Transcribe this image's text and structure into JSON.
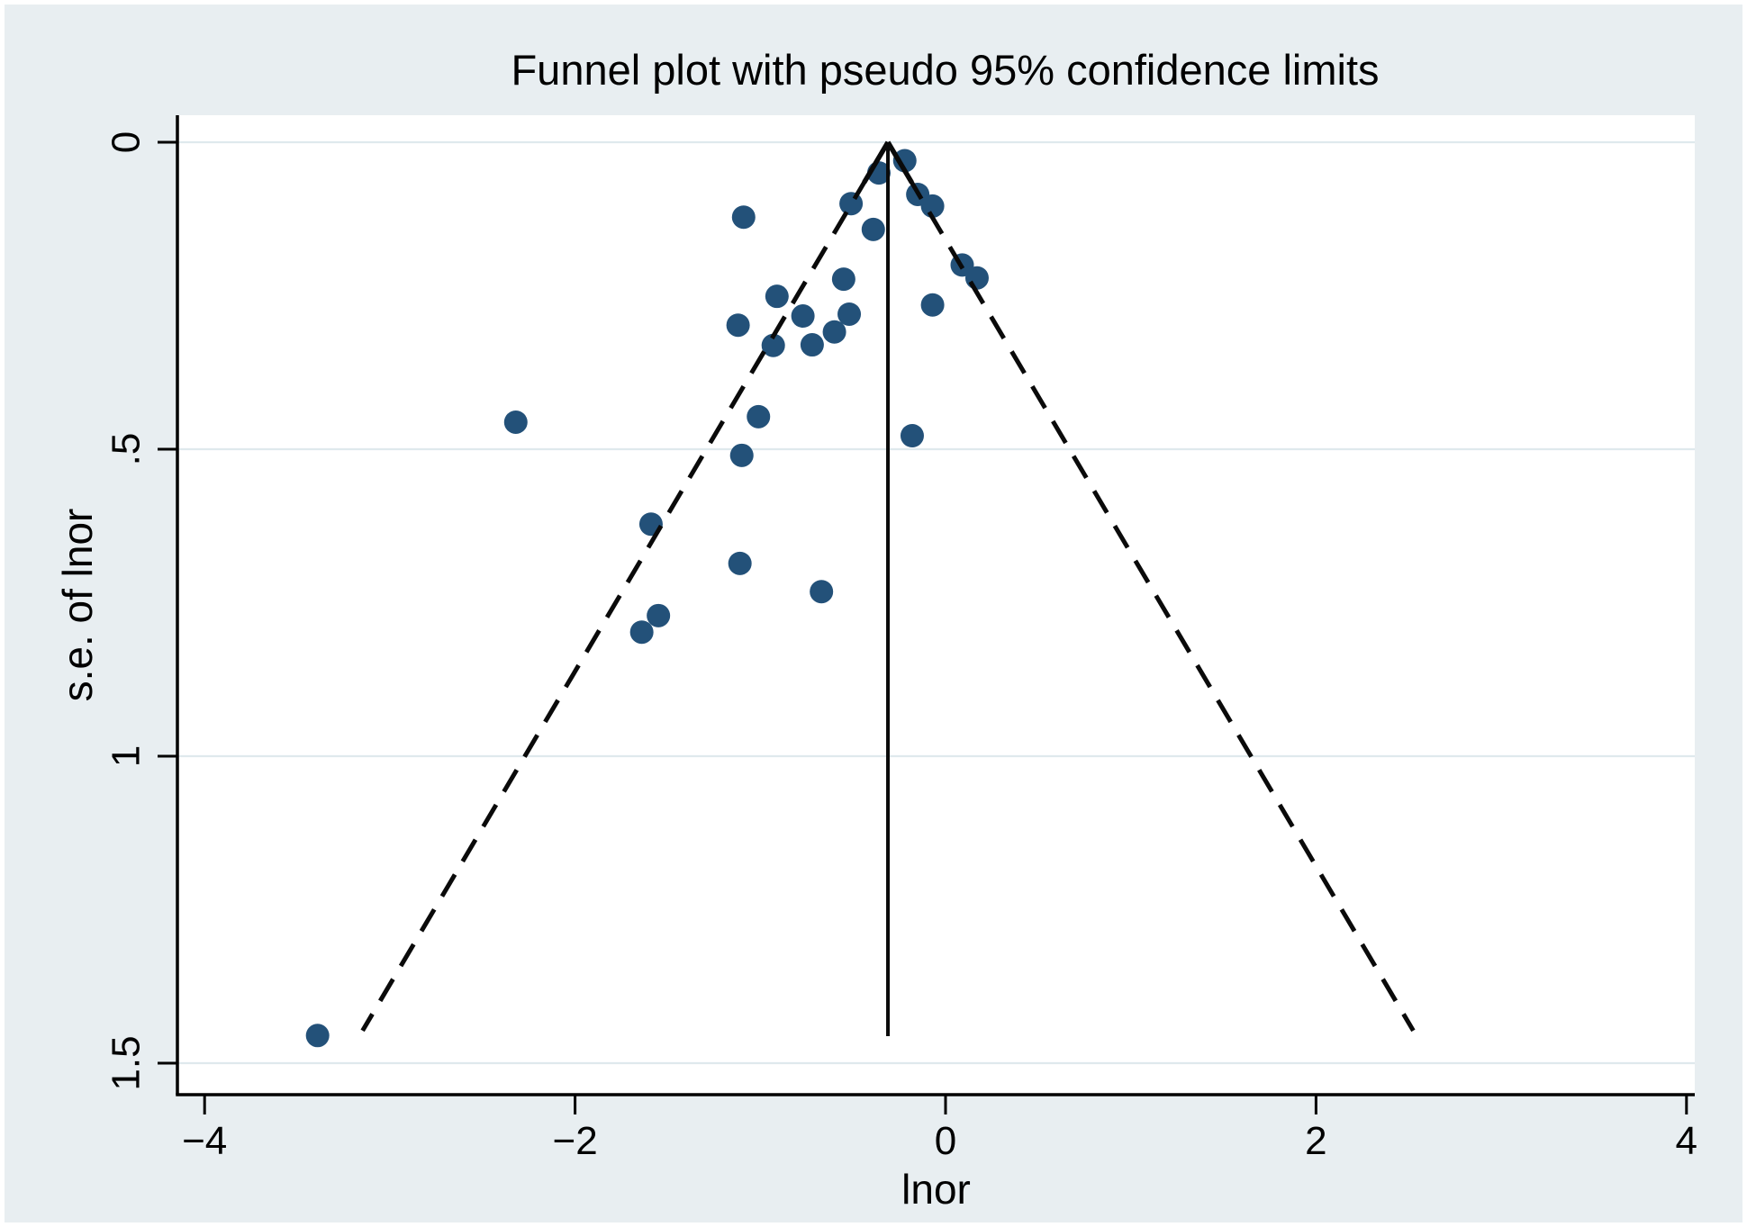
{
  "chart_data": {
    "type": "scatter",
    "subtype": "funnel-plot",
    "title": "Funnel plot with pseudo 95% confidence limits",
    "xlabel": "lnor",
    "ylabel": "s.e. of lnor",
    "x_ticks": {
      "values": [
        -4,
        -2,
        0,
        2,
        4
      ],
      "labels": [
        "−4",
        "−2",
        "0",
        "2",
        "4"
      ]
    },
    "y_ticks": {
      "values": [
        0,
        0.5,
        1,
        1.5
      ],
      "labels": [
        "0",
        ".5",
        "1",
        "1.5"
      ]
    },
    "xlim": [
      -4.15,
      4.05
    ],
    "ylim": [
      -0.045,
      1.55
    ],
    "y_axis_direction": "inverted-se-increases-downward",
    "grid": "horizontal-at-y-ticks",
    "legend": "none",
    "funnel": {
      "center": -0.311,
      "ci_multiplier": 1.96,
      "se_top": 0,
      "se_bottom": 1.447
    },
    "pooled_estimate_line": {
      "x": -0.311,
      "se_from": 0,
      "se_to": 1.456
    },
    "points": [
      {
        "x": -0.36,
        "y": 0.05
      },
      {
        "x": -0.22,
        "y": 0.03
      },
      {
        "x": -0.51,
        "y": 0.1
      },
      {
        "x": -0.15,
        "y": 0.085
      },
      {
        "x": -0.07,
        "y": 0.104
      },
      {
        "x": -0.39,
        "y": 0.142
      },
      {
        "x": -0.55,
        "y": 0.223
      },
      {
        "x": 0.09,
        "y": 0.2
      },
      {
        "x": 0.17,
        "y": 0.221
      },
      {
        "x": -0.91,
        "y": 0.251
      },
      {
        "x": -0.77,
        "y": 0.283
      },
      {
        "x": -0.52,
        "y": 0.28
      },
      {
        "x": -0.6,
        "y": 0.309
      },
      {
        "x": -0.72,
        "y": 0.33
      },
      {
        "x": -0.93,
        "y": 0.331
      },
      {
        "x": -1.09,
        "y": 0.122
      },
      {
        "x": -1.12,
        "y": 0.298
      },
      {
        "x": -0.07,
        "y": 0.265
      },
      {
        "x": -0.18,
        "y": 0.478
      },
      {
        "x": -2.32,
        "y": 0.456
      },
      {
        "x": -1.01,
        "y": 0.447
      },
      {
        "x": -1.1,
        "y": 0.51
      },
      {
        "x": -1.59,
        "y": 0.622
      },
      {
        "x": -1.11,
        "y": 0.686
      },
      {
        "x": -0.67,
        "y": 0.732
      },
      {
        "x": -1.55,
        "y": 0.771
      },
      {
        "x": -1.64,
        "y": 0.798
      },
      {
        "x": -3.39,
        "y": 1.455
      }
    ],
    "colors": {
      "canvas_background": "#e8eef1",
      "frame": "#ffffff",
      "plot_background": "#ffffff",
      "gridline": "#dfe9ed",
      "marker": "#235179",
      "axis": "#000000",
      "funnel_line": "#0a0a0a",
      "text": "#000000"
    }
  }
}
